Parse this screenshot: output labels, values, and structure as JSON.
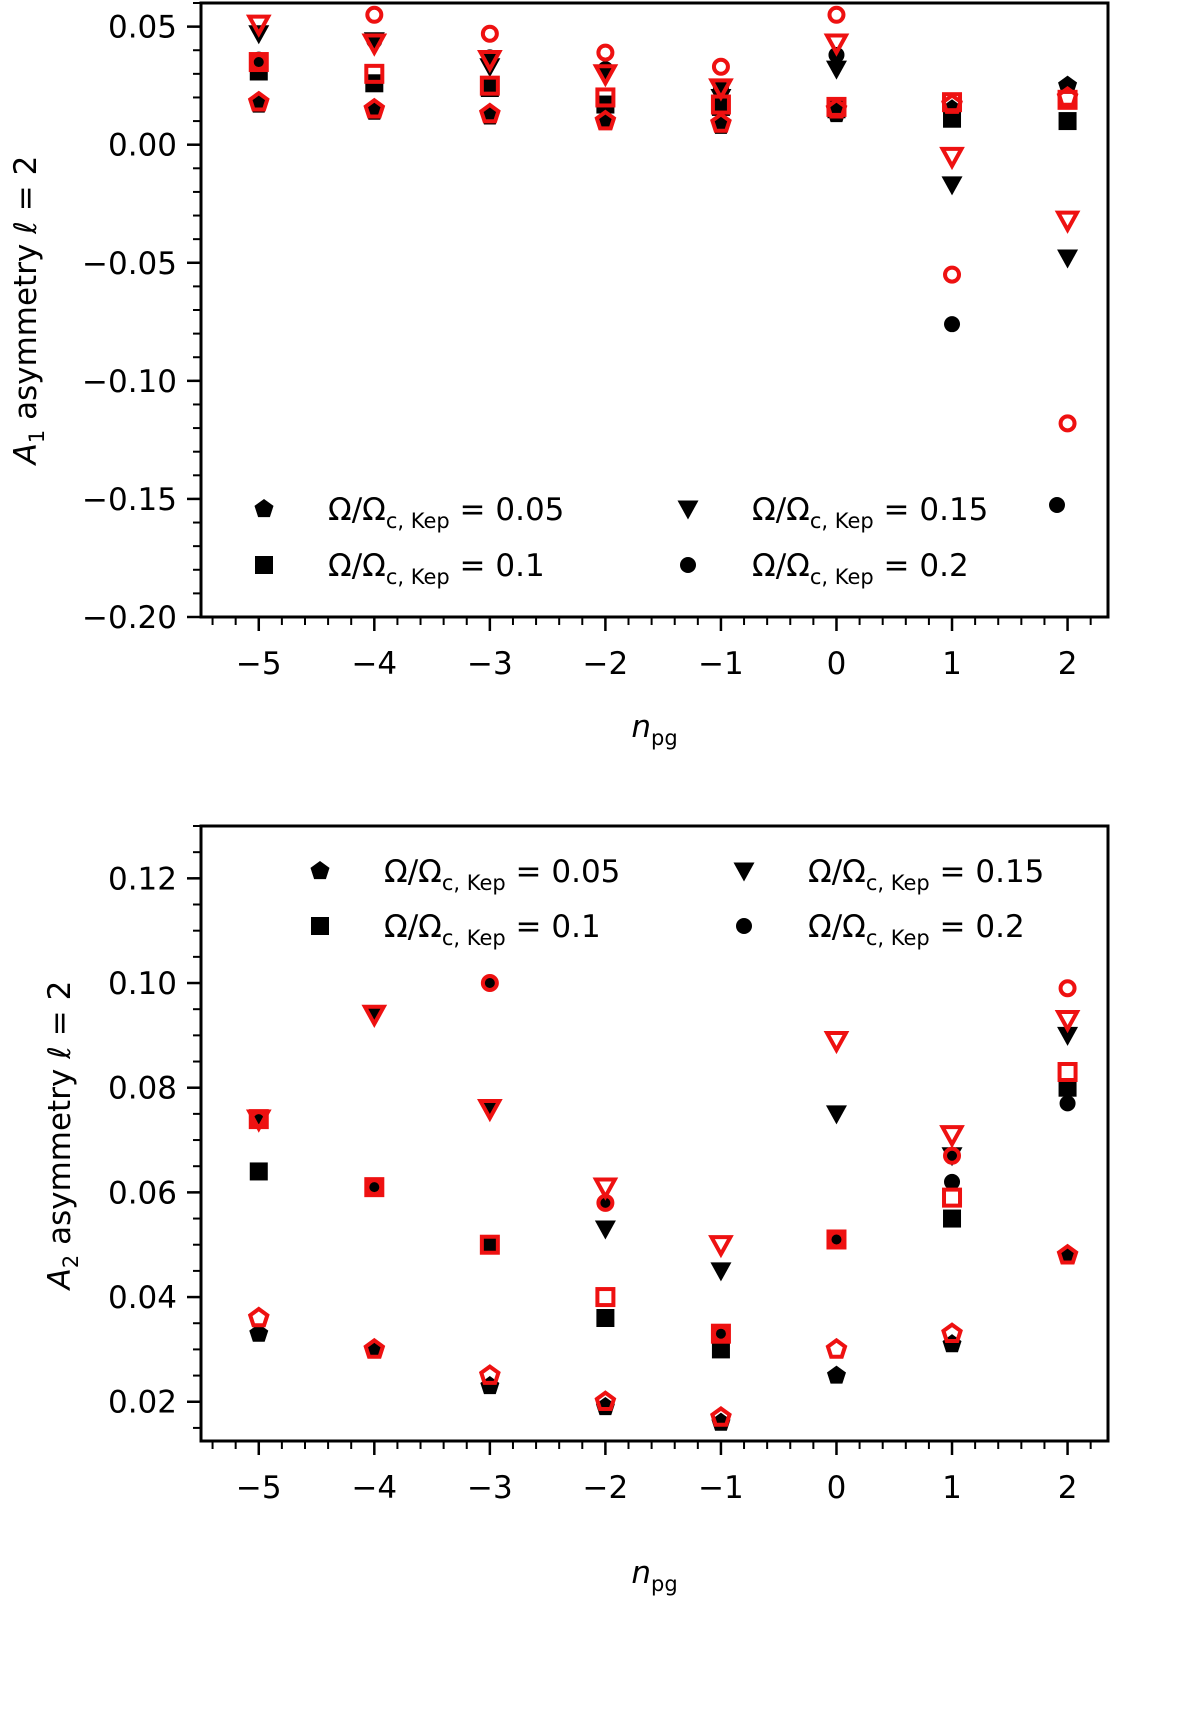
{
  "colors": {
    "black": "#000000",
    "red": "#ee1111"
  },
  "legend_entries": [
    {
      "symbol": "pentagon",
      "prefix": "Ω/Ω",
      "subscript": "c, Kep",
      "suffix": " = 0.05"
    },
    {
      "symbol": "square",
      "prefix": "Ω/Ω",
      "subscript": "c, Kep",
      "suffix": " = 0.1"
    },
    {
      "symbol": "triangle-down",
      "prefix": "Ω/Ω",
      "subscript": "c, Kep",
      "suffix": " = 0.15"
    },
    {
      "symbol": "circle",
      "prefix": "Ω/Ω",
      "subscript": "c, Kep",
      "suffix": " = 0.2"
    }
  ],
  "chart_data": [
    {
      "type": "scatter",
      "xlabel": {
        "main": "n",
        "sub": "pg"
      },
      "ylabel": {
        "main": "A",
        "sub": "1",
        "rest": " asymmetry ℓ = 2"
      },
      "x_ticks": [
        -5,
        -4,
        -3,
        -2,
        -1,
        0,
        1,
        2
      ],
      "x_tick_labels": [
        "−5",
        "−4",
        "−3",
        "−2",
        "−1",
        "0",
        "1",
        "2"
      ],
      "xlim": [
        -5.5,
        2.35
      ],
      "y_ticks": [
        0.05,
        0.0,
        -0.05,
        -0.1,
        -0.15,
        -0.2
      ],
      "y_tick_labels": [
        "0.05",
        "0.00",
        "−0.05",
        "−0.10",
        "−0.15",
        "−0.20"
      ],
      "ylim": [
        -0.2,
        0.06
      ],
      "legend_loc": "lower",
      "x": [
        -5,
        -4,
        -3,
        -2,
        -1,
        0,
        1,
        2
      ],
      "series": [
        {
          "marker": "pentagon",
          "black": [
            0.017,
            0.014,
            0.012,
            0.01,
            0.008,
            0.013,
            0.015,
            0.025
          ],
          "red": [
            0.018,
            0.015,
            0.013,
            0.01,
            0.009,
            0.015,
            0.017,
            0.02
          ]
        },
        {
          "marker": "square",
          "black": [
            0.031,
            0.026,
            0.024,
            0.017,
            0.016,
            0.015,
            0.011,
            0.01
          ],
          "red": [
            0.035,
            0.03,
            0.025,
            0.02,
            0.017,
            0.016,
            0.018,
            0.019
          ]
        },
        {
          "marker": "triangle-down",
          "black": [
            0.047,
            0.044,
            0.033,
            0.03,
            0.02,
            0.032,
            -0.017,
            -0.048
          ],
          "red": [
            0.051,
            0.043,
            0.036,
            0.03,
            0.024,
            0.043,
            -0.005,
            -0.032
          ]
        },
        {
          "marker": "circle",
          "black": [
            0.036,
            0.044,
            0.037,
            0.032,
            0.024,
            0.038,
            -0.076,
            null
          ],
          "red": [
            0.035,
            0.055,
            0.047,
            0.039,
            0.033,
            0.055,
            -0.055,
            -0.118
          ]
        }
      ]
    },
    {
      "type": "scatter",
      "xlabel": {
        "main": "n",
        "sub": "pg"
      },
      "ylabel": {
        "main": "A",
        "sub": "2",
        "rest": " asymmetry ℓ = 2"
      },
      "x_ticks": [
        -5,
        -4,
        -3,
        -2,
        -1,
        0,
        1,
        2
      ],
      "x_tick_labels": [
        "−5",
        "−4",
        "−3",
        "−2",
        "−1",
        "0",
        "1",
        "2"
      ],
      "xlim": [
        -5.5,
        2.35
      ],
      "y_ticks": [
        0.02,
        0.04,
        0.06,
        0.08,
        0.1,
        0.12
      ],
      "y_tick_labels": [
        "0.02",
        "0.04",
        "0.06",
        "0.08",
        "0.10",
        "0.12"
      ],
      "ylim": [
        0.0125,
        0.13
      ],
      "legend_loc": "upper",
      "x": [
        -5,
        -4,
        -3,
        -2,
        -1,
        0,
        1,
        2
      ],
      "series": [
        {
          "marker": "pentagon",
          "black": [
            0.033,
            0.03,
            0.023,
            0.019,
            0.016,
            0.025,
            0.031,
            0.048
          ],
          "red": [
            0.036,
            0.03,
            0.025,
            0.02,
            0.017,
            0.03,
            0.033,
            0.048
          ]
        },
        {
          "marker": "square",
          "black": [
            0.064,
            0.061,
            0.05,
            0.036,
            0.03,
            0.051,
            0.055,
            0.08
          ],
          "red": [
            0.074,
            0.061,
            0.05,
            0.04,
            0.033,
            0.051,
            0.059,
            0.083
          ]
        },
        {
          "marker": "triangle-down",
          "black": [
            0.074,
            0.094,
            0.076,
            0.053,
            0.045,
            0.075,
            0.067,
            0.09
          ],
          "red": [
            0.074,
            0.094,
            0.076,
            0.061,
            0.05,
            0.089,
            0.071,
            0.093
          ]
        },
        {
          "marker": "circle",
          "black": [
            0.074,
            0.061,
            0.1,
            0.058,
            0.033,
            0.051,
            0.062,
            0.077
          ],
          "red": [
            0.074,
            0.061,
            0.1,
            0.058,
            0.033,
            0.051,
            0.067,
            0.099
          ]
        }
      ]
    }
  ]
}
